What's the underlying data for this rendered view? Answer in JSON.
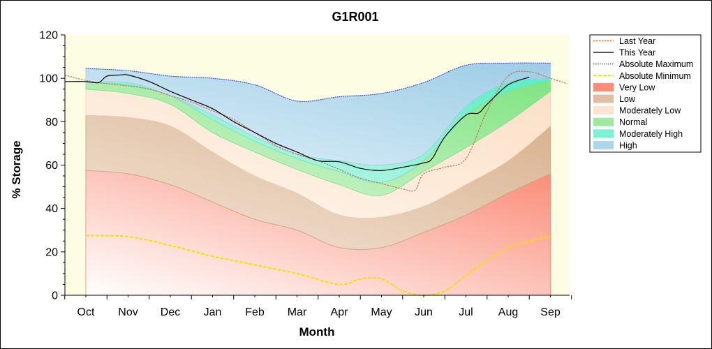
{
  "chart_data": {
    "type": "area",
    "title": "G1R001",
    "xlabel": "Month",
    "ylabel": "% Storage",
    "ylim": [
      0,
      120
    ],
    "yticks": [
      0,
      20,
      40,
      60,
      80,
      100,
      120
    ],
    "categories": [
      "Oct",
      "Nov",
      "Dec",
      "Jan",
      "Feb",
      "Mar",
      "Apr",
      "May",
      "Jun",
      "Jul",
      "Aug",
      "Sep"
    ],
    "x_months": [
      0,
      1,
      2,
      3,
      4,
      5,
      6,
      7,
      8,
      9,
      10,
      11
    ],
    "grid": false,
    "legend_position": "top-right",
    "bands": [
      {
        "name": "Very Low",
        "color": "#fa8c78",
        "lower": [
          0,
          0,
          0,
          0,
          0,
          0,
          0,
          0,
          0,
          0,
          0,
          0
        ],
        "upper": [
          57.5,
          56,
          51,
          43,
          35,
          30,
          22,
          22,
          29,
          37,
          47,
          56
        ]
      },
      {
        "name": "Low",
        "color": "#dfc0a3",
        "lower": [
          57.5,
          56,
          51,
          43,
          35,
          30,
          22,
          22,
          29,
          37,
          47,
          56
        ],
        "upper": [
          83,
          82,
          78,
          66,
          55,
          47,
          37,
          36,
          41,
          51,
          62,
          78
        ]
      },
      {
        "name": "Moderately Low",
        "color": "#fbe4d0",
        "lower": [
          83,
          82,
          78,
          66,
          55,
          47,
          37,
          36,
          41,
          51,
          62,
          78
        ],
        "upper": [
          95,
          93,
          88,
          75,
          66,
          58,
          51,
          46,
          57,
          68,
          80,
          94
        ]
      },
      {
        "name": "Normal",
        "color": "#9fe89f",
        "lower": [
          95,
          93,
          88,
          75,
          66,
          58,
          51,
          46,
          57,
          68,
          80,
          94
        ],
        "upper": [
          98,
          97,
          92,
          81,
          71,
          63,
          57,
          52,
          62,
          83,
          94,
          99
        ]
      },
      {
        "name": "Moderately High",
        "color": "#7cf2d4",
        "lower": [
          98,
          97,
          92,
          81,
          71,
          63,
          57,
          52,
          62,
          83,
          94,
          99
        ],
        "upper": [
          98,
          98,
          92,
          83,
          73,
          65,
          62,
          60,
          65,
          87,
          98,
          100
        ]
      },
      {
        "name": "High",
        "color": "#acd6ea",
        "lower": [
          98,
          98,
          92,
          83,
          73,
          65,
          62,
          60,
          65,
          87,
          98,
          100
        ],
        "upper": [
          104.5,
          103.5,
          101,
          100,
          97,
          89.5,
          91.5,
          93,
          98,
          106,
          107,
          107
        ]
      }
    ],
    "series": [
      {
        "name": "Last Year",
        "color": "#c26a3a",
        "style": "dashed",
        "x": [
          -0.5,
          0,
          0.5,
          1,
          1.5,
          2,
          2.5,
          3,
          3.5,
          4,
          4.5,
          5,
          5.5,
          6,
          6.5,
          7,
          7.5,
          7.8,
          8,
          8.5,
          9,
          9.5,
          10,
          10.5,
          11,
          11.4
        ],
        "y": [
          101.5,
          99,
          97.5,
          96.5,
          95,
          92,
          89,
          85,
          81,
          75,
          69,
          65,
          62,
          58,
          54,
          51.5,
          49,
          48.5,
          56,
          59,
          63,
          85,
          101,
          103,
          100,
          97.5
        ]
      },
      {
        "name": "This Year",
        "color": "#000000",
        "style": "solid",
        "x": [
          -0.5,
          0,
          0.3,
          0.5,
          0.8,
          1,
          1.5,
          2,
          2.5,
          3,
          3.5,
          4,
          4.5,
          5,
          5.5,
          6,
          6.5,
          7,
          7.5,
          8,
          8.2,
          8.5,
          9,
          9.3,
          9.5,
          10,
          10.5
        ],
        "y": [
          98.5,
          98.5,
          98,
          101,
          101.5,
          101.5,
          98.5,
          94,
          90,
          86,
          80,
          75,
          70,
          66,
          62,
          61.5,
          58.5,
          57.5,
          59,
          61,
          63,
          73,
          83,
          84,
          88,
          97,
          100.5
        ]
      },
      {
        "name": "Absolute Maximum",
        "color": "#2a2ad8",
        "style": "dotted",
        "x": [
          0,
          1,
          2,
          3,
          4,
          5,
          6,
          7,
          8,
          9,
          10,
          11
        ],
        "y": [
          104.5,
          103.5,
          101,
          100,
          97,
          89.5,
          91.5,
          93,
          98,
          106,
          107,
          107
        ]
      },
      {
        "name": "Absolute Minimum",
        "color": "#f5e000",
        "style": "dashed",
        "x": [
          0,
          1,
          2,
          3,
          4,
          5,
          6,
          6.5,
          7,
          7.5,
          8,
          8.5,
          9,
          9.5,
          10,
          10.5,
          11
        ],
        "y": [
          27.5,
          27,
          23,
          18,
          14,
          10,
          5,
          7.5,
          7.5,
          2,
          0,
          2,
          9,
          16,
          22,
          25,
          27
        ]
      }
    ],
    "legend": [
      {
        "label": "Last Year",
        "kind": "line",
        "color": "#c26a3a",
        "style": "dashed"
      },
      {
        "label": "This Year",
        "kind": "line",
        "color": "#000000",
        "style": "solid"
      },
      {
        "label": "Absolute Maximum",
        "kind": "line",
        "color": "#2a2ad8",
        "style": "dotted"
      },
      {
        "label": "Absolute Minimum",
        "kind": "line",
        "color": "#f5e000",
        "style": "dashed"
      },
      {
        "label": "Very Low",
        "kind": "band",
        "color": "#fa8c78"
      },
      {
        "label": "Low",
        "kind": "band",
        "color": "#dfc0a3"
      },
      {
        "label": "Moderately Low",
        "kind": "band",
        "color": "#fbe4d0"
      },
      {
        "label": "Normal",
        "kind": "band",
        "color": "#9fe89f"
      },
      {
        "label": "Moderately High",
        "kind": "band",
        "color": "#7cf2d4"
      },
      {
        "label": "High",
        "kind": "band",
        "color": "#acd6ea"
      }
    ],
    "plot_background": "#fdfde4"
  }
}
